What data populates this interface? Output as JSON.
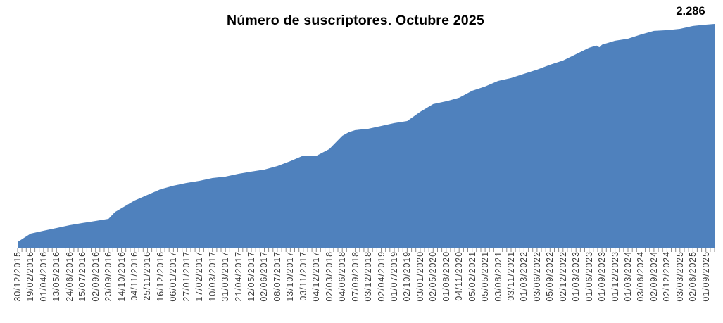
{
  "chart": {
    "title": "Número de suscriptores. Octubre 2025",
    "end_label": "2.286"
  },
  "chart_data": {
    "type": "area",
    "title": "Número de suscriptores. Octubre 2025",
    "series_name": "Número de suscriptores",
    "final_value": 2286,
    "final_value_label": "2.286",
    "ylim": [
      0,
      2286
    ],
    "fill_color": "#4F81BD",
    "axis_color": "#c9c9c9",
    "tick_color": "#8a8a8a",
    "legend": "none",
    "grid": "off",
    "total_ticks": 162,
    "label_tick_step": 3,
    "x_tick_labels": [
      "30/12/2015",
      "19/02/2016",
      "01/04/2016",
      "13/05/2016",
      "24/06/2016",
      "15/07/2016",
      "02/09/2016",
      "23/09/2016",
      "14/10/2016",
      "04/11/2016",
      "25/11/2016",
      "16/12/2016",
      "06/01/2017",
      "27/01/2017",
      "17/02/2017",
      "10/03/2017",
      "31/03/2017",
      "21/04/2017",
      "12/05/2017",
      "02/06/2017",
      "08/07/2017",
      "13/10/2017",
      "03/11/2017",
      "04/12/2017",
      "02/03/2018",
      "04/06/2018",
      "07/09/2018",
      "03/12/2018",
      "02/04/2019",
      "01/07/2019",
      "02/10/2019",
      "03/01/2020",
      "02/05/2020",
      "01/08/2020",
      "04/11/2020",
      "05/02/2021",
      "05/05/2021",
      "03/08/2021",
      "03/11/2021",
      "01/03/2022",
      "03/06/2022",
      "05/09/2022",
      "02/12/2022",
      "01/03/2023",
      "01/06/2023",
      "01/09/2023",
      "01/12/2023",
      "01/03/2024",
      "03/06/2024",
      "02/09/2024",
      "02/12/2024",
      "03/03/2025",
      "02/06/2025",
      "01/09/2025"
    ],
    "points": [
      {
        "t": 0,
        "v": 58
      },
      {
        "t": 3,
        "v": 144
      },
      {
        "t": 6,
        "v": 173
      },
      {
        "t": 9,
        "v": 201
      },
      {
        "t": 12,
        "v": 230
      },
      {
        "t": 15,
        "v": 252
      },
      {
        "t": 18,
        "v": 273
      },
      {
        "t": 21,
        "v": 295
      },
      {
        "t": 22.5,
        "v": 365
      },
      {
        "t": 24,
        "v": 403
      },
      {
        "t": 27,
        "v": 482
      },
      {
        "t": 30,
        "v": 539
      },
      {
        "t": 33,
        "v": 597
      },
      {
        "t": 36,
        "v": 633
      },
      {
        "t": 39,
        "v": 661
      },
      {
        "t": 42,
        "v": 683
      },
      {
        "t": 45,
        "v": 712
      },
      {
        "t": 48,
        "v": 726
      },
      {
        "t": 51,
        "v": 755
      },
      {
        "t": 54,
        "v": 777
      },
      {
        "t": 57,
        "v": 798
      },
      {
        "t": 60,
        "v": 834
      },
      {
        "t": 63,
        "v": 884
      },
      {
        "t": 66,
        "v": 941
      },
      {
        "t": 69,
        "v": 938
      },
      {
        "t": 72,
        "v": 1007
      },
      {
        "t": 75,
        "v": 1143
      },
      {
        "t": 76.5,
        "v": 1180
      },
      {
        "t": 78,
        "v": 1201
      },
      {
        "t": 81,
        "v": 1215
      },
      {
        "t": 84,
        "v": 1244
      },
      {
        "t": 87,
        "v": 1273
      },
      {
        "t": 90,
        "v": 1294
      },
      {
        "t": 93,
        "v": 1388
      },
      {
        "t": 96,
        "v": 1467
      },
      {
        "t": 99,
        "v": 1496
      },
      {
        "t": 102,
        "v": 1532
      },
      {
        "t": 105,
        "v": 1603
      },
      {
        "t": 108,
        "v": 1647
      },
      {
        "t": 111,
        "v": 1704
      },
      {
        "t": 114,
        "v": 1733
      },
      {
        "t": 117,
        "v": 1776
      },
      {
        "t": 120,
        "v": 1819
      },
      {
        "t": 123,
        "v": 1869
      },
      {
        "t": 126,
        "v": 1912
      },
      {
        "t": 129,
        "v": 1977
      },
      {
        "t": 132,
        "v": 2042
      },
      {
        "t": 133.7,
        "v": 2066
      },
      {
        "t": 134.4,
        "v": 2048
      },
      {
        "t": 135,
        "v": 2074
      },
      {
        "t": 138,
        "v": 2114
      },
      {
        "t": 141,
        "v": 2135
      },
      {
        "t": 144,
        "v": 2178
      },
      {
        "t": 147,
        "v": 2215
      },
      {
        "t": 150,
        "v": 2222
      },
      {
        "t": 153,
        "v": 2236
      },
      {
        "t": 156,
        "v": 2265
      },
      {
        "t": 159,
        "v": 2279
      },
      {
        "t": 161,
        "v": 2286
      }
    ]
  }
}
